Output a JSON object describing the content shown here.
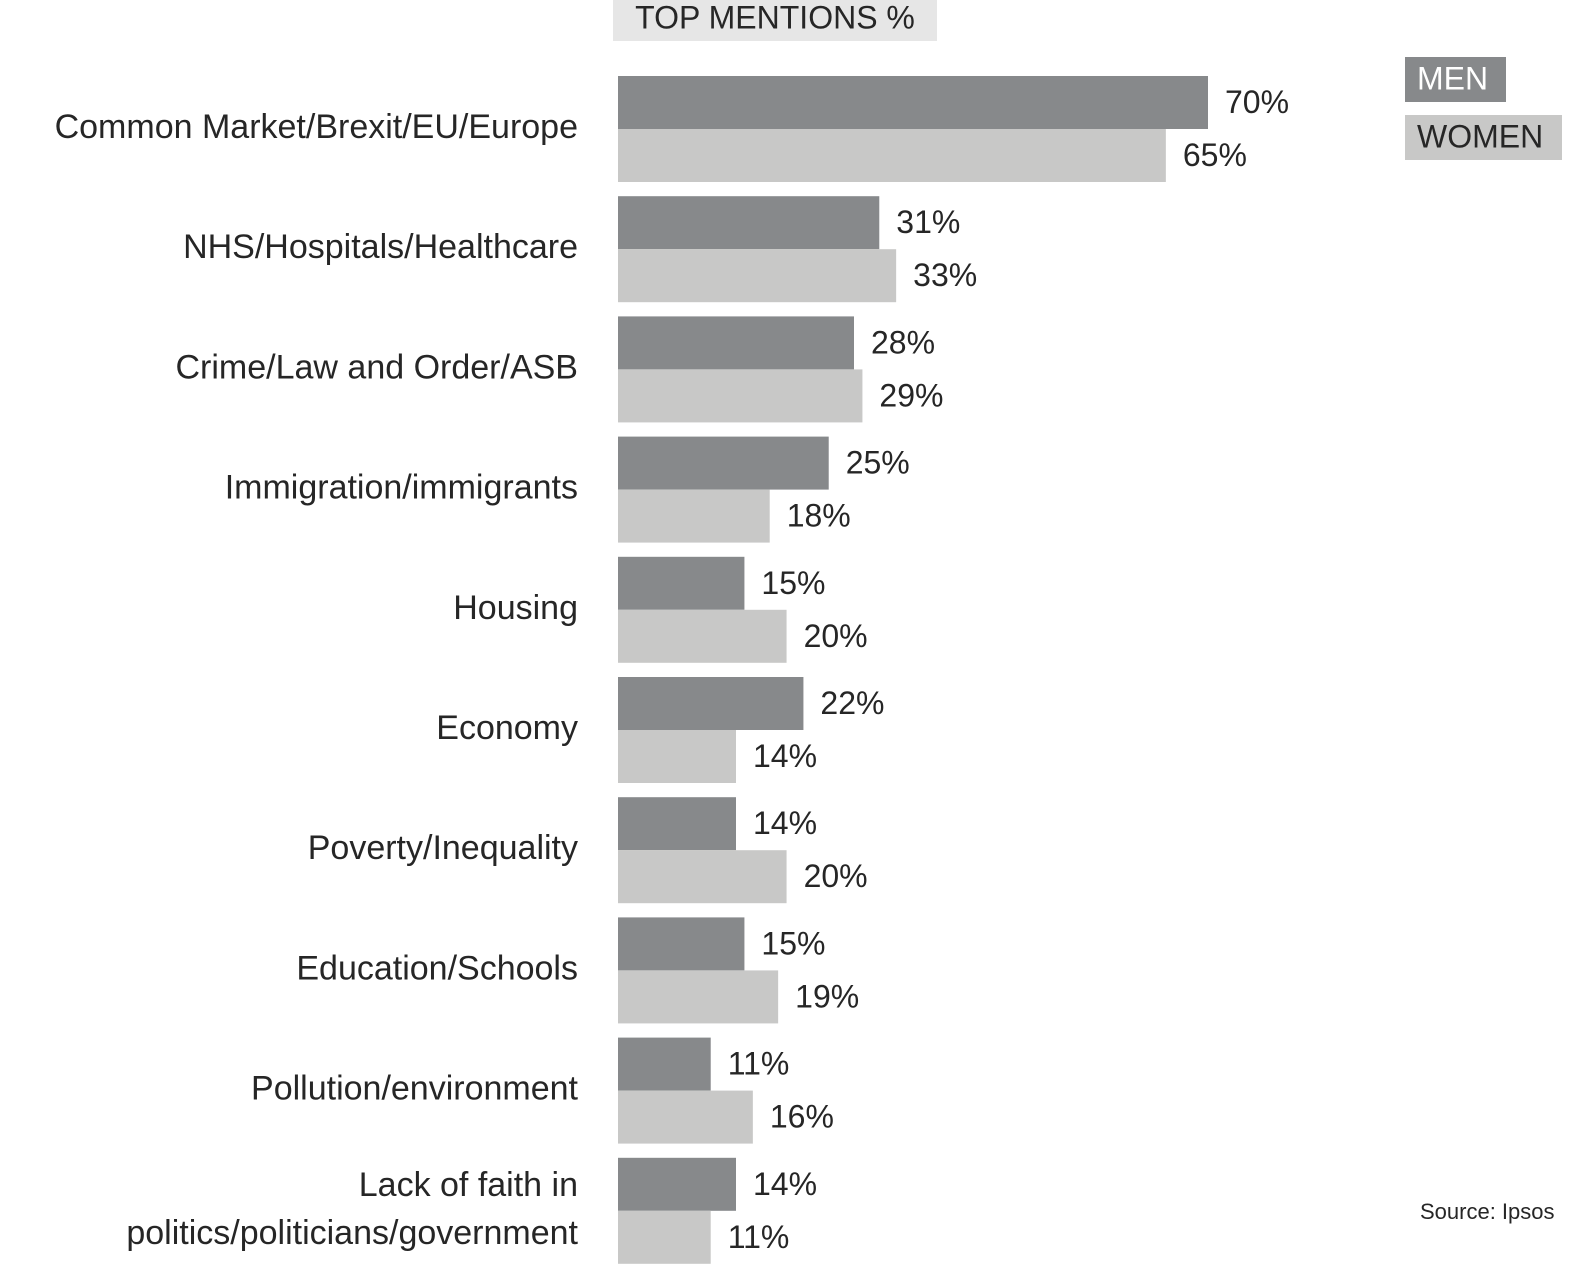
{
  "chart_data": {
    "type": "bar",
    "orientation": "horizontal",
    "title": "TOP MENTIONS %",
    "source": "Source: Ipsos",
    "categories": [
      "Common Market/Brexit/EU/Europe",
      "NHS/Hospitals/Healthcare",
      "Crime/Law and Order/ASB",
      "Immigration/immigrants",
      "Housing",
      "Economy",
      "Poverty/Inequality",
      "Education/Schools",
      "Pollution/environment",
      "Lack of faith in\npolitics/politicians/government"
    ],
    "series": [
      {
        "name": "MEN",
        "color": "#87898b",
        "values": [
          70,
          31,
          28,
          25,
          15,
          22,
          14,
          15,
          11,
          14
        ],
        "value_labels": [
          "70%",
          "31%",
          "28%",
          "25%",
          "15%",
          "22%",
          "14%",
          "15%",
          "11%",
          "14%"
        ]
      },
      {
        "name": "WOMEN",
        "color": "#c8c8c7",
        "values": [
          65,
          33,
          29,
          18,
          20,
          14,
          20,
          19,
          16,
          11
        ],
        "value_labels": [
          "65%",
          "33%",
          "29%",
          "18%",
          "20%",
          "14%",
          "20%",
          "19%",
          "16%",
          "11%"
        ]
      }
    ],
    "legend": "top-right"
  }
}
